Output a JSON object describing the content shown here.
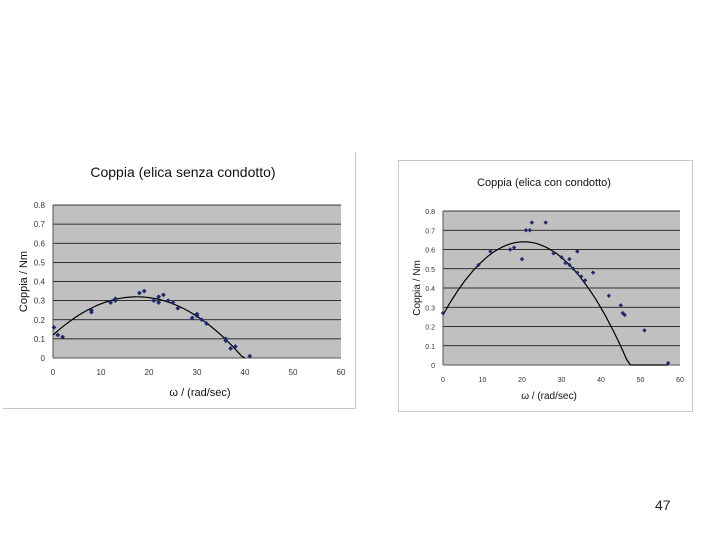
{
  "page_number": "47",
  "colors": {
    "plot_bg": "#c0c0c0",
    "grid": "#000000",
    "points": "#1f2a6e",
    "curve": "#000000"
  },
  "chart_data": [
    {
      "type": "scatter",
      "title": "Coppia (elica senza condotto)",
      "xlabel": "ω / (rad/sec)",
      "ylabel": "Coppia / Nm",
      "xlim": [
        0,
        60
      ],
      "ylim": [
        0,
        0.8
      ],
      "xticks": [
        "0",
        "10",
        "20",
        "30",
        "40",
        "50",
        "60"
      ],
      "yticks": [
        "0",
        "0.1",
        "0.2",
        "0.3",
        "0.4",
        "0.5",
        "0.6",
        "0.7",
        "0.8"
      ],
      "grid": "horizontal",
      "points": [
        [
          0.2,
          0.16
        ],
        [
          1,
          0.12
        ],
        [
          2,
          0.11
        ],
        [
          8,
          0.24
        ],
        [
          8,
          0.25
        ],
        [
          12,
          0.29
        ],
        [
          13,
          0.3
        ],
        [
          13,
          0.31
        ],
        [
          18,
          0.34
        ],
        [
          19,
          0.35
        ],
        [
          21,
          0.3
        ],
        [
          22,
          0.29
        ],
        [
          22,
          0.32
        ],
        [
          23,
          0.33
        ],
        [
          24,
          0.3
        ],
        [
          25,
          0.29
        ],
        [
          26,
          0.26
        ],
        [
          29,
          0.21
        ],
        [
          30,
          0.22
        ],
        [
          30,
          0.23
        ],
        [
          31,
          0.2
        ],
        [
          32,
          0.18
        ],
        [
          36,
          0.1
        ],
        [
          36,
          0.09
        ],
        [
          37,
          0.05
        ],
        [
          38,
          0.06
        ],
        [
          41,
          0.01
        ]
      ],
      "trend_line": {
        "x_from": 0,
        "x_to": 40,
        "peak_x": 17.5,
        "peak_y": 0.32,
        "y_at_0": 0.12
      }
    },
    {
      "type": "scatter",
      "title": "Coppia (elica con condotto)",
      "xlabel": "ω / (rad/sec)",
      "ylabel": "Coppia / Nm",
      "xlim": [
        0,
        60
      ],
      "ylim": [
        0,
        0.8
      ],
      "xticks": [
        "0",
        "10",
        "20",
        "30",
        "40",
        "50",
        "60"
      ],
      "yticks": [
        "0",
        "0.1",
        "0.2",
        "0.3",
        "0.4",
        "0.5",
        "0.6",
        "0.7",
        "0.8"
      ],
      "grid": "horizontal",
      "points": [
        [
          0,
          0.27
        ],
        [
          9,
          0.52
        ],
        [
          12,
          0.59
        ],
        [
          17,
          0.6
        ],
        [
          18,
          0.61
        ],
        [
          20,
          0.55
        ],
        [
          21,
          0.7
        ],
        [
          22,
          0.7
        ],
        [
          22.5,
          0.74
        ],
        [
          26,
          0.74
        ],
        [
          28,
          0.58
        ],
        [
          30,
          0.56
        ],
        [
          31,
          0.53
        ],
        [
          32,
          0.52
        ],
        [
          32,
          0.55
        ],
        [
          33,
          0.5
        ],
        [
          34,
          0.59
        ],
        [
          34,
          0.48
        ],
        [
          35,
          0.46
        ],
        [
          36,
          0.44
        ],
        [
          38,
          0.48
        ],
        [
          42,
          0.36
        ],
        [
          45,
          0.31
        ],
        [
          45.5,
          0.27
        ],
        [
          46,
          0.26
        ],
        [
          51,
          0.18
        ],
        [
          57,
          0.01
        ]
      ],
      "trend_line": {
        "x_from": 0,
        "x_to": 57,
        "peak_x": 20.5,
        "peak_y": 0.64,
        "y_at_0": 0.26
      }
    }
  ]
}
